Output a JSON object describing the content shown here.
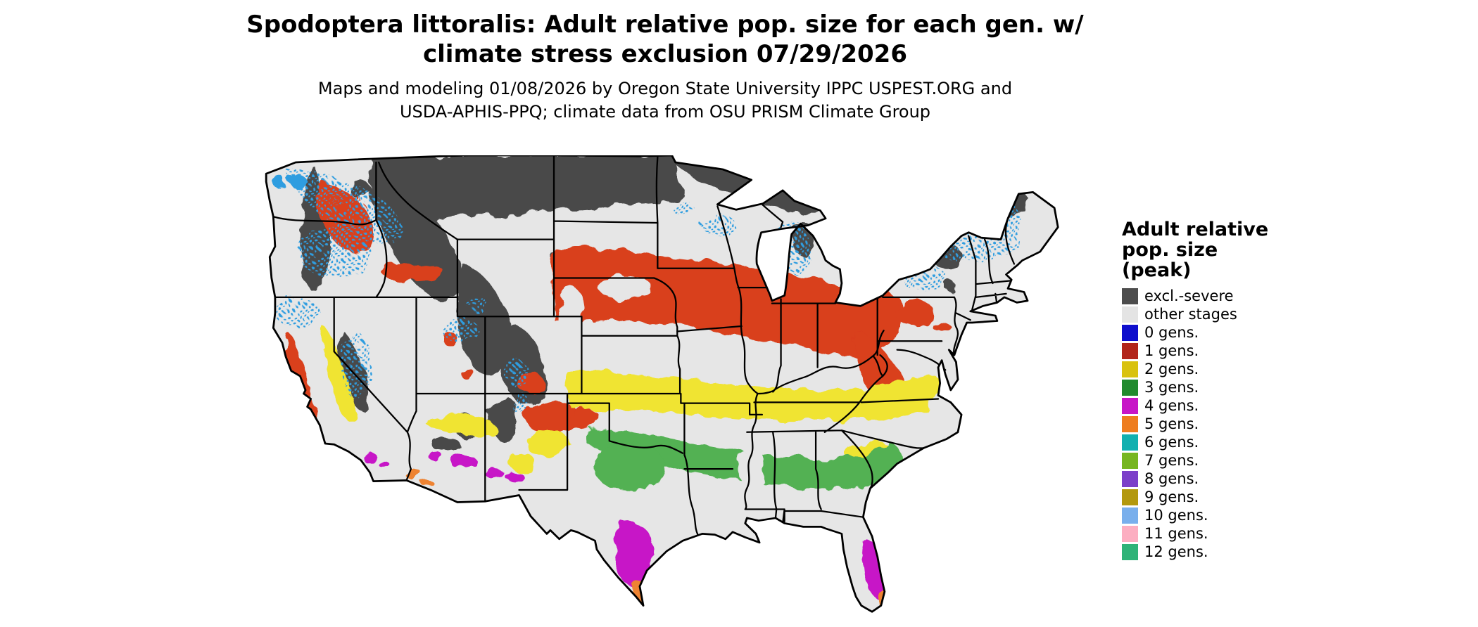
{
  "title": {
    "line1": "Spodoptera littoralis: Adult relative pop. size for each gen. w/",
    "line2": "climate stress exclusion 07/29/2026"
  },
  "subtitle": {
    "line1": "Maps and modeling 01/08/2026 by Oregon State University IPPC USPEST.ORG and",
    "line2": "USDA-APHIS-PPQ; climate data from OSU PRISM Climate Group"
  },
  "legend": {
    "title_lines": [
      "Adult relative",
      "pop. size",
      "(peak)"
    ],
    "items": [
      {
        "label": "excl.-severe",
        "color": "#4d4d4d"
      },
      {
        "label": "other stages",
        "color": "#e4e4e4"
      },
      {
        "label": "0 gens.",
        "color": "#0d0dcc"
      },
      {
        "label": "1 gens.",
        "color": "#b2261c"
      },
      {
        "label": "2 gens.",
        "color": "#d9c20f"
      },
      {
        "label": "3 gens.",
        "color": "#218a2e"
      },
      {
        "label": "4 gens.",
        "color": "#c716c7"
      },
      {
        "label": "5 gens.",
        "color": "#ee7d20"
      },
      {
        "label": "6 gens.",
        "color": "#12b0b0"
      },
      {
        "label": "7 gens.",
        "color": "#76b620"
      },
      {
        "label": "8 gens.",
        "color": "#7c3fc9"
      },
      {
        "label": "9 gens.",
        "color": "#b3990f"
      },
      {
        "label": "10 gens.",
        "color": "#79afec"
      },
      {
        "label": "11 gens.",
        "color": "#fcaec1"
      },
      {
        "label": "12 gens.",
        "color": "#2fb378"
      }
    ]
  }
}
